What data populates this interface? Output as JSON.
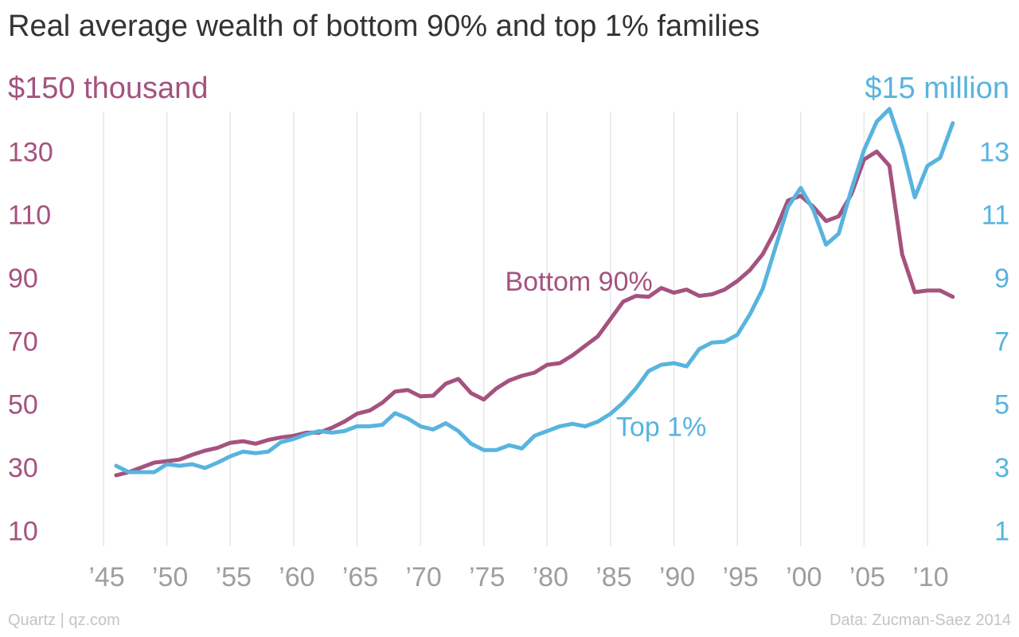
{
  "title": "Real average wealth of bottom 90% and top 1% families",
  "source_left": "Quartz | qz.com",
  "source_right": "Data: Zucman-Saez 2014",
  "colors": {
    "bottom": "#a5527f",
    "top": "#58b4de",
    "grid": "#e6e6e6",
    "xtick": "#9e9e9e",
    "title": "#333333",
    "footer": "#c4c4c4"
  },
  "chart_data": {
    "type": "line",
    "title": "Real average wealth of bottom 90% and top 1% families",
    "xlim": [
      1941,
      2015
    ],
    "x_ticks": [
      1945,
      1950,
      1955,
      1960,
      1965,
      1970,
      1975,
      1980,
      1985,
      1990,
      1995,
      2000,
      2005,
      2010
    ],
    "x_tick_labels": [
      "’45",
      "’50",
      "’55",
      "’60",
      "’65",
      "’70",
      "’75",
      "’80",
      "’85",
      "’90",
      "’95",
      "’00",
      "’05",
      "’10"
    ],
    "y_left": {
      "unit_label": "$150 thousand",
      "lim": [
        0,
        150
      ],
      "ticks": [
        10,
        30,
        50,
        70,
        90,
        110,
        130
      ],
      "tick_labels": [
        "10",
        "30",
        "50",
        "70",
        "90",
        "110",
        "130"
      ]
    },
    "y_right": {
      "unit_label": "$15 million",
      "lim": [
        0,
        15
      ],
      "ticks": [
        1,
        3,
        5,
        7,
        9,
        11,
        13
      ],
      "tick_labels": [
        "1",
        "3",
        "5",
        "7",
        "9",
        "11",
        "13"
      ]
    },
    "grid": true,
    "series": [
      {
        "name": "Bottom 90%",
        "axis": "left",
        "x": [
          1946,
          1947,
          1948,
          1949,
          1950,
          1951,
          1952,
          1953,
          1954,
          1955,
          1956,
          1957,
          1958,
          1959,
          1960,
          1961,
          1962,
          1963,
          1964,
          1965,
          1966,
          1967,
          1968,
          1969,
          1970,
          1971,
          1972,
          1973,
          1974,
          1975,
          1976,
          1977,
          1978,
          1979,
          1980,
          1981,
          1982,
          1983,
          1984,
          1985,
          1986,
          1987,
          1988,
          1989,
          1990,
          1991,
          1992,
          1993,
          1994,
          1995,
          1996,
          1997,
          1998,
          1999,
          2000,
          2001,
          2002,
          2003,
          2004,
          2005,
          2006,
          2007,
          2008,
          2009,
          2010,
          2011,
          2012
        ],
        "values": [
          27.5,
          28.5,
          30,
          31.5,
          32,
          32.5,
          34,
          35.3,
          36.2,
          37.8,
          38.3,
          37.5,
          38.7,
          39.5,
          40,
          41,
          41,
          42.5,
          44.5,
          47,
          48,
          50.5,
          54,
          54.5,
          52.5,
          52.7,
          56.5,
          58,
          53.5,
          51.5,
          55,
          57.5,
          59,
          60,
          62.5,
          63,
          65.5,
          68.5,
          71.5,
          77,
          82.5,
          84.3,
          84,
          86.8,
          85.3,
          86.3,
          84.3,
          84.8,
          86.3,
          89,
          92.5,
          97.5,
          105,
          114.5,
          116,
          112.5,
          108,
          109.5,
          116.5,
          127.5,
          130,
          125.5,
          97.5,
          85.5,
          86,
          86,
          84
        ]
      },
      {
        "name": "Top 1%",
        "axis": "right",
        "x": [
          1946,
          1947,
          1948,
          1949,
          1950,
          1951,
          1952,
          1953,
          1954,
          1955,
          1956,
          1957,
          1958,
          1959,
          1960,
          1961,
          1962,
          1963,
          1964,
          1965,
          1966,
          1967,
          1968,
          1969,
          1970,
          1971,
          1972,
          1973,
          1974,
          1975,
          1976,
          1977,
          1978,
          1979,
          1980,
          1981,
          1982,
          1983,
          1984,
          1985,
          1986,
          1987,
          1988,
          1989,
          1990,
          1991,
          1992,
          1993,
          1994,
          1995,
          1996,
          1997,
          1998,
          1999,
          2000,
          2001,
          2002,
          2003,
          2004,
          2005,
          2006,
          2007,
          2008,
          2009,
          2010,
          2011,
          2012
        ],
        "values": [
          3.05,
          2.85,
          2.85,
          2.85,
          3.1,
          3.05,
          3.1,
          2.98,
          3.15,
          3.35,
          3.5,
          3.45,
          3.5,
          3.8,
          3.9,
          4.05,
          4.15,
          4.1,
          4.15,
          4.3,
          4.3,
          4.35,
          4.72,
          4.55,
          4.3,
          4.2,
          4.4,
          4.15,
          3.75,
          3.55,
          3.55,
          3.7,
          3.6,
          4,
          4.15,
          4.3,
          4.38,
          4.3,
          4.45,
          4.7,
          5.05,
          5.5,
          6.05,
          6.25,
          6.3,
          6.2,
          6.75,
          6.95,
          6.98,
          7.2,
          7.85,
          8.65,
          9.95,
          11.25,
          11.85,
          11.15,
          10.05,
          10.4,
          11.8,
          13.05,
          13.95,
          14.35,
          13.15,
          11.55,
          12.55,
          12.8,
          13.9
        ]
      }
    ],
    "annotations": [
      {
        "text": "Bottom 90%",
        "series": "Bottom 90%",
        "x": 1982.5,
        "y": 89
      },
      {
        "text": "Top 1%",
        "series": "Top 1%",
        "x": 1989,
        "y": 4.3
      }
    ]
  }
}
